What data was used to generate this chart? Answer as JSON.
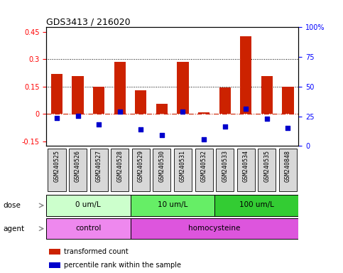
{
  "title": "GDS3413 / 216020",
  "samples": [
    "GSM240525",
    "GSM240526",
    "GSM240527",
    "GSM240528",
    "GSM240529",
    "GSM240530",
    "GSM240531",
    "GSM240532",
    "GSM240533",
    "GSM240534",
    "GSM240535",
    "GSM240848"
  ],
  "red_values": [
    0.22,
    0.21,
    0.15,
    0.285,
    0.13,
    0.055,
    0.285,
    0.01,
    0.145,
    0.425,
    0.21,
    0.15
  ],
  "blue_values_raw": [
    -0.02,
    -0.01,
    -0.055,
    0.015,
    -0.085,
    -0.115,
    0.015,
    -0.14,
    -0.07,
    0.03,
    -0.025,
    -0.075
  ],
  "ylim_left": [
    -0.175,
    0.475
  ],
  "ylim_right": [
    0,
    100
  ],
  "yticks_left": [
    -0.15,
    0.0,
    0.15,
    0.3,
    0.45
  ],
  "yticks_right": [
    0,
    25,
    50,
    75,
    100
  ],
  "ytick_labels_left": [
    "-0.15",
    "0",
    "0.15",
    "0.3",
    "0.45"
  ],
  "ytick_labels_right": [
    "0",
    "25",
    "50",
    "75",
    "100%"
  ],
  "hlines": [
    0.15,
    0.3
  ],
  "dose_groups": [
    {
      "label": "0 um/L",
      "start": 0,
      "end": 4,
      "color": "#ccffcc"
    },
    {
      "label": "10 um/L",
      "start": 4,
      "end": 8,
      "color": "#66ee66"
    },
    {
      "label": "100 um/L",
      "start": 8,
      "end": 12,
      "color": "#33cc33"
    }
  ],
  "agent_groups": [
    {
      "label": "control",
      "start": 0,
      "end": 4,
      "color": "#ee88ee"
    },
    {
      "label": "homocysteine",
      "start": 4,
      "end": 12,
      "color": "#dd55dd"
    }
  ],
  "bar_color": "#cc2200",
  "dot_color": "#0000cc",
  "zero_line_color": "#cc2200",
  "bg_color": "#ffffff",
  "dose_label": "dose",
  "agent_label": "agent",
  "legend_items": [
    {
      "label": "transformed count",
      "color": "#cc2200"
    },
    {
      "label": "percentile rank within the sample",
      "color": "#0000cc"
    }
  ]
}
